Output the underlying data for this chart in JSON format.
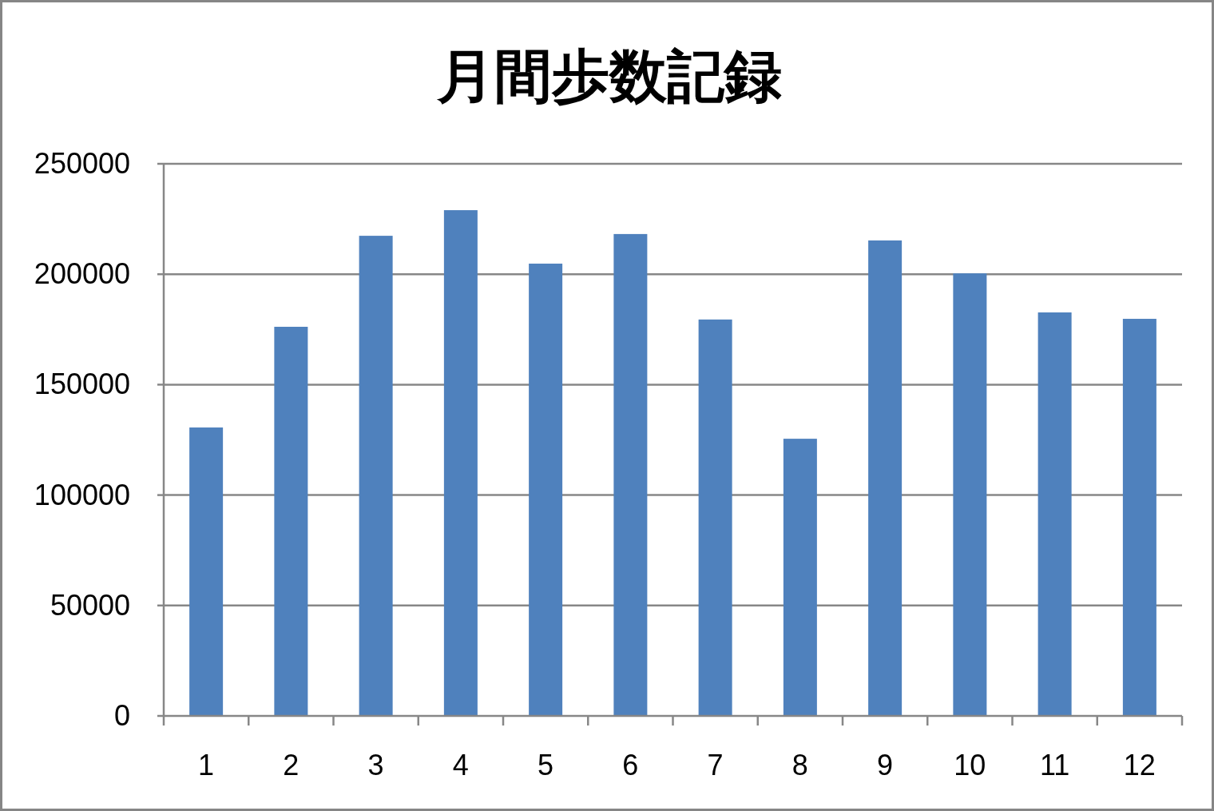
{
  "chart_data": {
    "type": "bar",
    "title": "月間歩数記録",
    "categories": [
      "1",
      "2",
      "3",
      "4",
      "5",
      "6",
      "7",
      "8",
      "9",
      "10",
      "11",
      "12"
    ],
    "values": [
      130600,
      176200,
      217400,
      229000,
      204800,
      218200,
      179500,
      125500,
      215300,
      200400,
      182700,
      179800
    ],
    "color": "#4f81bd",
    "ylim": [
      0,
      250000
    ],
    "yticks": [
      0,
      50000,
      100000,
      150000,
      200000,
      250000
    ],
    "grid": "y"
  }
}
